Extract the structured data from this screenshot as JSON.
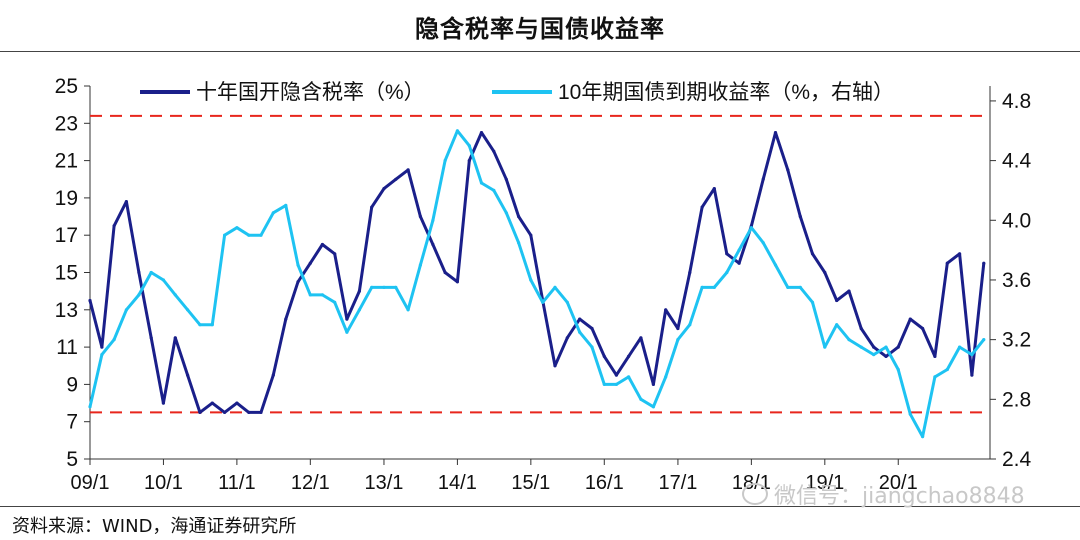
{
  "title": "隐含税率与国债收益率",
  "source": "资料来源：WIND，海通证券研究所",
  "watermark": "微信号：jiangchao8848",
  "chart_data": {
    "type": "line",
    "title": "隐含税率与国债收益率",
    "left_axis": {
      "ylim": [
        5,
        25
      ],
      "ticks": [
        5,
        7,
        9,
        11,
        13,
        15,
        17,
        19,
        21,
        23,
        25
      ]
    },
    "right_axis": {
      "ylim": [
        2.4,
        4.9
      ],
      "ticks": [
        2.4,
        2.8,
        3.2,
        3.6,
        4.0,
        4.4,
        4.8
      ]
    },
    "x_ticks": [
      "09/1",
      "10/1",
      "11/1",
      "12/1",
      "13/1",
      "14/1",
      "15/1",
      "16/1",
      "17/1",
      "18/1",
      "19/1",
      "20/1"
    ],
    "reference_lines_left_axis": [
      23.4,
      7.5
    ],
    "reference_line_color": "#e8261c",
    "legend_placement": "top",
    "series": [
      {
        "name": "十年国开隐含税率（%）",
        "axis": "left",
        "color": "#1a1f8a",
        "x": [
          "2009-01",
          "2009-03",
          "2009-05",
          "2009-07",
          "2009-09",
          "2009-11",
          "2010-01",
          "2010-03",
          "2010-05",
          "2010-07",
          "2010-09",
          "2010-11",
          "2011-01",
          "2011-03",
          "2011-05",
          "2011-07",
          "2011-09",
          "2011-11",
          "2012-01",
          "2012-03",
          "2012-05",
          "2012-07",
          "2012-09",
          "2012-11",
          "2013-01",
          "2013-03",
          "2013-05",
          "2013-07",
          "2013-09",
          "2013-11",
          "2014-01",
          "2014-03",
          "2014-05",
          "2014-07",
          "2014-09",
          "2014-11",
          "2015-01",
          "2015-03",
          "2015-05",
          "2015-07",
          "2015-09",
          "2015-11",
          "2016-01",
          "2016-03",
          "2016-05",
          "2016-07",
          "2016-09",
          "2016-11",
          "2017-01",
          "2017-03",
          "2017-05",
          "2017-07",
          "2017-09",
          "2017-11",
          "2018-01",
          "2018-03",
          "2018-05",
          "2018-07",
          "2018-09",
          "2018-11",
          "2019-01",
          "2019-03",
          "2019-05",
          "2019-07",
          "2019-09",
          "2019-11",
          "2020-01",
          "2020-03",
          "2020-05",
          "2020-07",
          "2020-09",
          "2020-11",
          "2021-01",
          "2021-03"
        ],
        "values": [
          13.5,
          11.0,
          17.5,
          18.8,
          15.0,
          11.5,
          8.0,
          11.5,
          9.5,
          7.5,
          8.0,
          7.5,
          8.0,
          7.5,
          7.5,
          9.5,
          12.5,
          14.5,
          15.5,
          16.5,
          16.0,
          12.5,
          14.0,
          18.5,
          19.5,
          20.0,
          20.5,
          18.0,
          16.5,
          15.0,
          14.5,
          21.0,
          22.5,
          21.5,
          20.0,
          18.0,
          17.0,
          13.5,
          10.0,
          11.5,
          12.5,
          12.0,
          10.5,
          9.5,
          10.5,
          11.5,
          9.0,
          13.0,
          12.0,
          15.0,
          18.5,
          19.5,
          16.0,
          15.5,
          17.5,
          20.0,
          22.5,
          20.5,
          18.0,
          16.0,
          15.0,
          13.5,
          14.0,
          12.0,
          11.0,
          10.5,
          11.0,
          12.5,
          12.0,
          10.5,
          15.5,
          16.0,
          9.5,
          15.5
        ]
      },
      {
        "name": "10年期国债到期收益率（%，右轴）",
        "axis": "right",
        "color": "#1ec3f2",
        "x": [
          "2009-01",
          "2009-03",
          "2009-05",
          "2009-07",
          "2009-09",
          "2009-11",
          "2010-01",
          "2010-03",
          "2010-05",
          "2010-07",
          "2010-09",
          "2010-11",
          "2011-01",
          "2011-03",
          "2011-05",
          "2011-07",
          "2011-09",
          "2011-11",
          "2012-01",
          "2012-03",
          "2012-05",
          "2012-07",
          "2012-09",
          "2012-11",
          "2013-01",
          "2013-03",
          "2013-05",
          "2013-07",
          "2013-09",
          "2013-11",
          "2014-01",
          "2014-03",
          "2014-05",
          "2014-07",
          "2014-09",
          "2014-11",
          "2015-01",
          "2015-03",
          "2015-05",
          "2015-07",
          "2015-09",
          "2015-11",
          "2016-01",
          "2016-03",
          "2016-05",
          "2016-07",
          "2016-09",
          "2016-11",
          "2017-01",
          "2017-03",
          "2017-05",
          "2017-07",
          "2017-09",
          "2017-11",
          "2018-01",
          "2018-03",
          "2018-05",
          "2018-07",
          "2018-09",
          "2018-11",
          "2019-01",
          "2019-03",
          "2019-05",
          "2019-07",
          "2019-09",
          "2019-11",
          "2020-01",
          "2020-03",
          "2020-05",
          "2020-07",
          "2020-09",
          "2020-11",
          "2021-01",
          "2021-03"
        ],
        "values": [
          2.75,
          3.1,
          3.2,
          3.4,
          3.5,
          3.65,
          3.6,
          3.5,
          3.4,
          3.3,
          3.3,
          3.9,
          3.95,
          3.9,
          3.9,
          4.05,
          4.1,
          3.7,
          3.5,
          3.5,
          3.45,
          3.25,
          3.4,
          3.55,
          3.55,
          3.55,
          3.4,
          3.7,
          4.0,
          4.4,
          4.6,
          4.5,
          4.25,
          4.2,
          4.05,
          3.85,
          3.6,
          3.45,
          3.55,
          3.45,
          3.25,
          3.15,
          2.9,
          2.9,
          2.95,
          2.8,
          2.75,
          2.95,
          3.2,
          3.3,
          3.55,
          3.55,
          3.65,
          3.8,
          3.95,
          3.85,
          3.7,
          3.55,
          3.55,
          3.45,
          3.15,
          3.3,
          3.2,
          3.15,
          3.1,
          3.15,
          3.0,
          2.7,
          2.55,
          2.95,
          3.0,
          3.15,
          3.1,
          3.2
        ]
      }
    ]
  }
}
